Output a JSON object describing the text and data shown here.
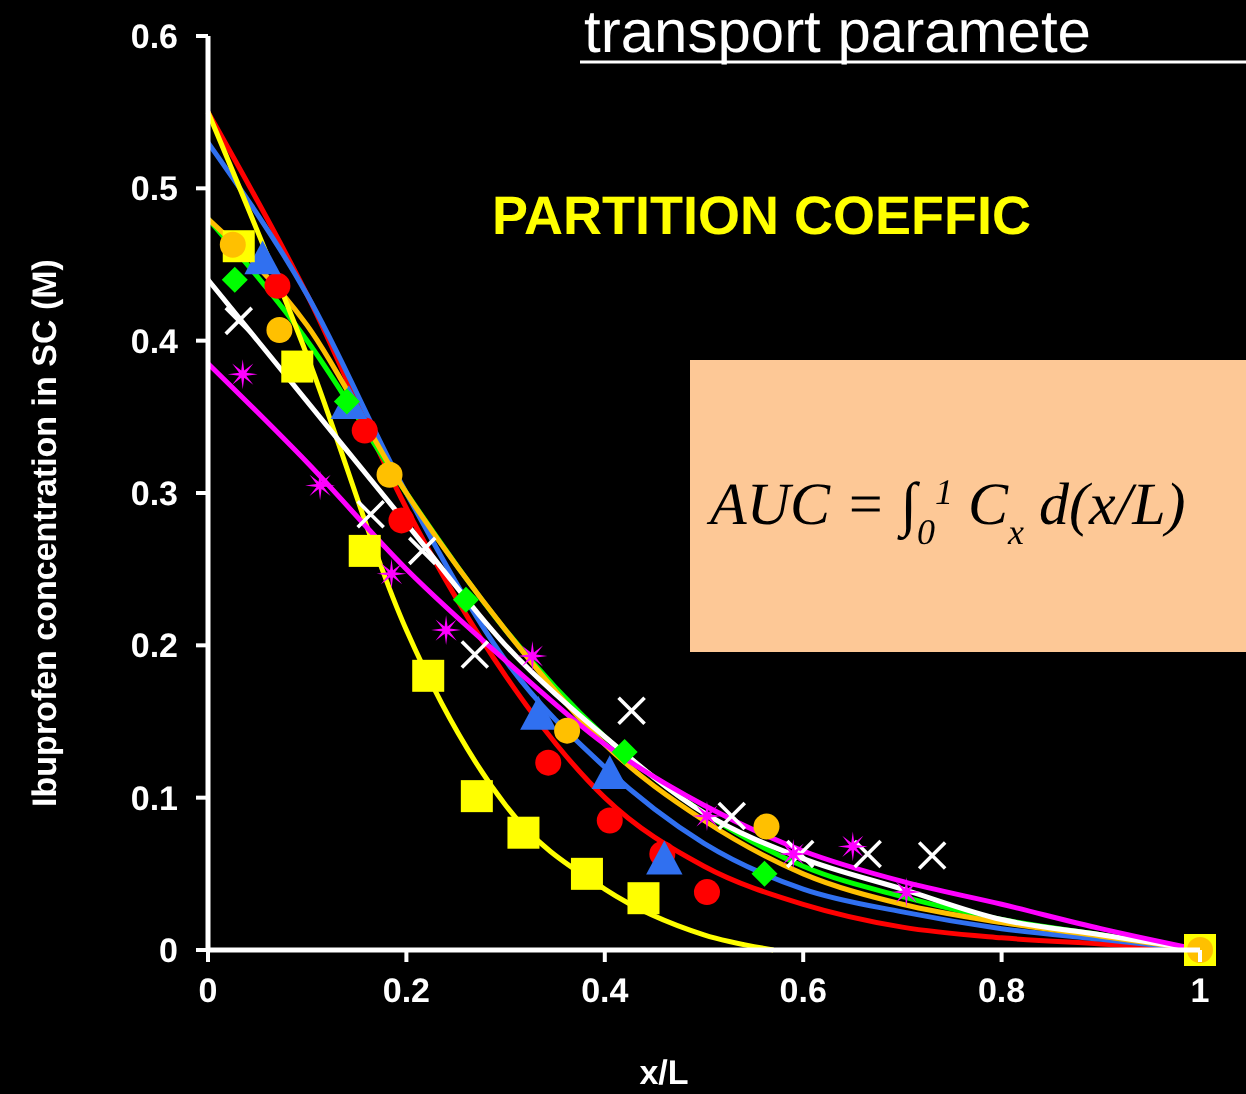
{
  "chart_data": {
    "type": "scatter",
    "xlabel": "x/L",
    "ylabel": "Ibuprofen concentration in SC (M)",
    "xlim": [
      0,
      1
    ],
    "ylim": [
      0,
      0.6
    ],
    "xticks": [
      0,
      0.2,
      0.4,
      0.6,
      0.8,
      1
    ],
    "yticks": [
      0,
      0.1,
      0.2,
      0.3,
      0.4,
      0.5,
      0.6
    ],
    "grid": false,
    "annotations": [
      "transport paramete",
      "PARTITION COEFFIC",
      "AUC = ∫$_{0}$$^{1}$ C$_{x}$ d(x/L)"
    ],
    "series": [
      {
        "type": "line",
        "color": "#ff0000",
        "marker": "none",
        "x": [
          0,
          0.1,
          0.2,
          0.3,
          0.4,
          0.5,
          0.6,
          0.7,
          0.8,
          0.9,
          1
        ],
        "values": [
          0.55,
          0.43,
          0.29,
          0.18,
          0.1,
          0.055,
          0.03,
          0.015,
          0.008,
          0.004,
          0
        ]
      },
      {
        "type": "line",
        "color": "#3070f0",
        "marker": "none",
        "x": [
          0,
          0.1,
          0.2,
          0.3,
          0.4,
          0.5,
          0.6,
          0.7,
          0.8,
          0.9,
          1
        ],
        "values": [
          0.53,
          0.43,
          0.3,
          0.19,
          0.12,
          0.07,
          0.04,
          0.025,
          0.014,
          0.007,
          0
        ]
      },
      {
        "type": "line",
        "color": "#00ff00",
        "marker": "none",
        "x": [
          0,
          0.1,
          0.2,
          0.3,
          0.4,
          0.5,
          0.6,
          0.7,
          0.8,
          0.9,
          1
        ],
        "values": [
          0.48,
          0.4,
          0.3,
          0.21,
          0.14,
          0.09,
          0.055,
          0.035,
          0.02,
          0.01,
          0
        ]
      },
      {
        "type": "line",
        "color": "#ffc000",
        "marker": "none",
        "x": [
          0,
          0.1,
          0.2,
          0.3,
          0.4,
          0.5,
          0.6,
          0.7,
          0.8,
          0.9,
          1
        ],
        "values": [
          0.48,
          0.41,
          0.3,
          0.21,
          0.135,
          0.085,
          0.05,
          0.03,
          0.018,
          0.009,
          0
        ]
      },
      {
        "type": "line",
        "color": "#ffff00",
        "marker": "none",
        "x": [
          0,
          0.1,
          0.2,
          0.3,
          0.4,
          0.5,
          0.57
        ],
        "values": [
          0.55,
          0.39,
          0.21,
          0.095,
          0.04,
          0.01,
          0
        ]
      },
      {
        "type": "line",
        "color": "#ffffff",
        "marker": "none",
        "x": [
          0,
          0.1,
          0.2,
          0.3,
          0.4,
          0.5,
          0.6,
          0.7,
          0.8,
          0.9,
          1
        ],
        "values": [
          0.44,
          0.36,
          0.28,
          0.2,
          0.14,
          0.09,
          0.06,
          0.04,
          0.02,
          0.01,
          0
        ]
      },
      {
        "type": "line",
        "color": "#ff00ff",
        "marker": "none",
        "x": [
          0,
          0.1,
          0.2,
          0.3,
          0.4,
          0.5,
          0.6,
          0.7,
          0.8,
          0.9,
          1
        ],
        "values": [
          0.385,
          0.32,
          0.25,
          0.19,
          0.135,
          0.095,
          0.065,
          0.045,
          0.03,
          0.014,
          0
        ]
      },
      {
        "color": "#ff0000",
        "marker": "circle",
        "x": [
          0.07,
          0.158,
          0.195,
          0.343,
          0.405,
          0.458,
          0.503
        ],
        "values": [
          0.436,
          0.341,
          0.282,
          0.123,
          0.085,
          0.063,
          0.038
        ]
      },
      {
        "color": "#3070f0",
        "marker": "triangle",
        "x": [
          0.055,
          0.142,
          0.333,
          0.405,
          0.46
        ],
        "values": [
          0.453,
          0.358,
          0.154,
          0.115,
          0.059
        ]
      },
      {
        "color": "#00ff00",
        "marker": "diamond",
        "x": [
          0.027,
          0.14,
          0.26,
          0.42,
          0.561
        ],
        "values": [
          0.44,
          0.36,
          0.23,
          0.13,
          0.05
        ]
      },
      {
        "color": "#ffff00",
        "marker": "square",
        "x": [
          0.031,
          0.09,
          0.158,
          0.222,
          0.271,
          0.318,
          0.382,
          0.439,
          1
        ],
        "values": [
          0.462,
          0.383,
          0.262,
          0.18,
          0.101,
          0.077,
          0.05,
          0.034,
          0
        ]
      },
      {
        "color": "#ffc000",
        "marker": "circle",
        "x": [
          0.025,
          0.072,
          0.183,
          0.362,
          0.563,
          1
        ],
        "values": [
          0.463,
          0.407,
          0.312,
          0.144,
          0.081,
          0
        ]
      },
      {
        "color": "#ffffff",
        "marker": "cross",
        "x": [
          0.031,
          0.164,
          0.216,
          0.269,
          0.427,
          0.528,
          0.597,
          0.665,
          0.73
        ],
        "values": [
          0.413,
          0.286,
          0.262,
          0.194,
          0.157,
          0.088,
          0.063,
          0.063,
          0.062
        ]
      },
      {
        "color": "#ff00ff",
        "marker": "star",
        "x": [
          0.035,
          0.113,
          0.185,
          0.24,
          0.327,
          0.503,
          0.59,
          0.65,
          0.704
        ],
        "values": [
          0.378,
          0.305,
          0.247,
          0.21,
          0.193,
          0.088,
          0.063,
          0.068,
          0.038
        ]
      }
    ]
  }
}
